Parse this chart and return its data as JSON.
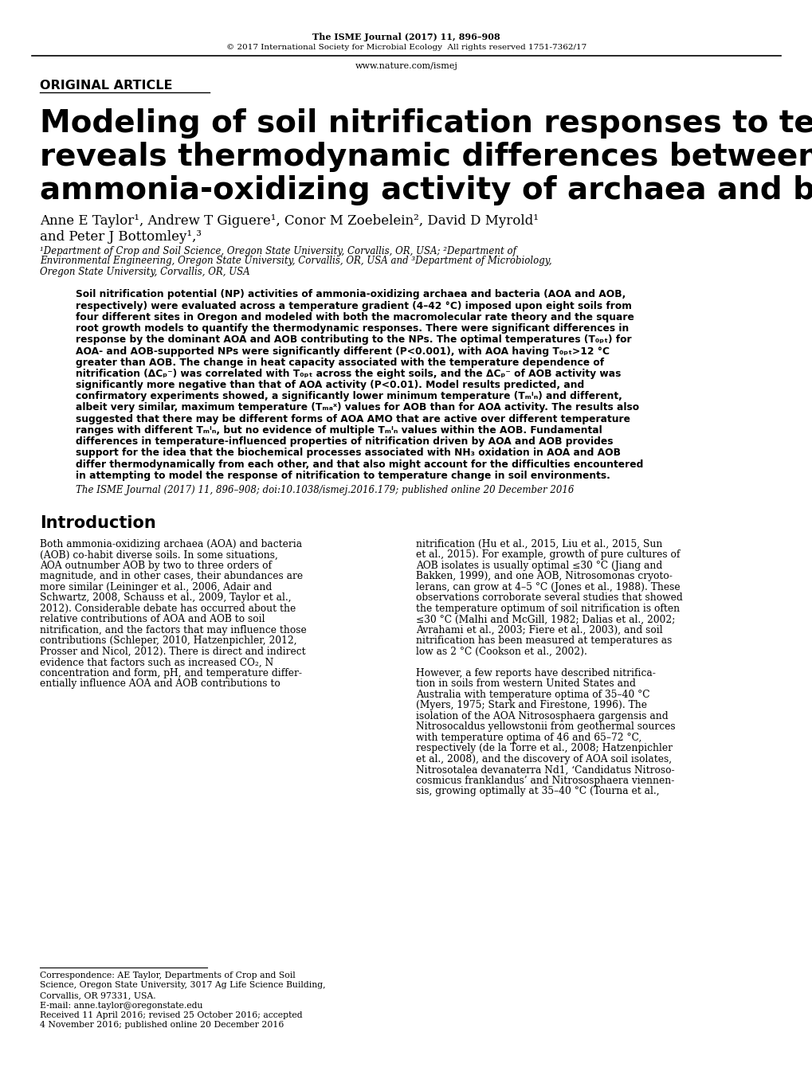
{
  "bg_color": "#ffffff",
  "header_journal_bold": "The ISME Journal (2017) 11,",
  "header_journal_normal": " 896–908",
  "header_copyright": "© 2017 International Society for Microbial Ecology  All rights reserved 1751-7362/17",
  "header_url": "www.nature.com/ismej",
  "label_original": "ORIGINAL ARTICLE",
  "title_line1": "Modeling of soil nitrification responses to temperature",
  "title_line2": "reveals thermodynamic differences between",
  "title_line3": "ammonia-oxidizing activity of archaea and bacteria",
  "authors_line1": "Anne E Taylor¹, Andrew T Giguere¹, Conor M Zoebelein², David D Myrold¹",
  "authors_line2": "and Peter J Bottomley¹,³",
  "affil1": "¹Department of Crop and Soil Science, Oregon State University, Corvallis, OR, USA; ²Department of",
  "affil2": "Environmental Engineering, Oregon State University, Corvallis, OR, USA and ³Department of Microbiology,",
  "affil3": "Oregon State University, Corvallis, OR, USA",
  "abstract_lines": [
    "Soil nitrification potential (NP) activities of ammonia-oxidizing archaea and bacteria (AOA and AOB,",
    "respectively) were evaluated across a temperature gradient (4–42 °C) imposed upon eight soils from",
    "four different sites in Oregon and modeled with both the macromolecular rate theory and the square",
    "root growth models to quantify the thermodynamic responses. There were significant differences in",
    "response by the dominant AOA and AOB contributing to the NPs. The optimal temperatures (T₀ₚₜ) for",
    "AOA- and AOB-supported NPs were significantly different (P<0.001), with AOA having T₀ₚₜ>12 °C",
    "greater than AOB. The change in heat capacity associated with the temperature dependence of",
    "nitrification (ΔCₚ⁻) was correlated with T₀ₚₜ across the eight soils, and the ΔCₚ⁻ of AOB activity was",
    "significantly more negative than that of AOA activity (P<0.01). Model results predicted, and",
    "confirmatory experiments showed, a significantly lower minimum temperature (Tₘᴵₙ) and different,",
    "albeit very similar, maximum temperature (Tₘₐˣ) values for AOB than for AOA activity. The results also",
    "suggested that there may be different forms of AOA AMO that are active over different temperature",
    "ranges with different Tₘᴵₙ, but no evidence of multiple Tₘᴵₙ values within the AOB. Fundamental",
    "differences in temperature-influenced properties of nitrification driven by AOA and AOB provides",
    "support for the idea that the biochemical processes associated with NH₃ oxidation in AOA and AOB",
    "differ thermodynamically from each other, and that also might account for the difficulties encountered",
    "in attempting to model the response of nitrification to temperature change in soil environments."
  ],
  "abstract_citation": "The ISME Journal (2017) 11, 896–908; doi:10.1038/ismej.2016.179; published online 20 December 2016",
  "intro_title": "Introduction",
  "intro_col1_lines": [
    "Both ammonia-oxidizing archaea (AOA) and bacteria",
    "(AOB) co-habit diverse soils. In some situations,",
    "AOA outnumber AOB by two to three orders of",
    "magnitude, and in other cases, their abundances are",
    "more similar (Leininger et al., 2006, Adair and",
    "Schwartz, 2008, Schauss et al., 2009, Taylor et al.,",
    "2012). Considerable debate has occurred about the",
    "relative contributions of AOA and AOB to soil",
    "nitrification, and the factors that may influence those",
    "contributions (Schleper, 2010, Hatzenpichler, 2012,",
    "Prosser and Nicol, 2012). There is direct and indirect",
    "evidence that factors such as increased CO₂, N",
    "concentration and form, pH, and temperature differ-",
    "entially influence AOA and AOB contributions to"
  ],
  "intro_col2_lines": [
    "nitrification (Hu et al., 2015, Liu et al., 2015, Sun",
    "et al., 2015). For example, growth of pure cultures of",
    "AOB isolates is usually optimal ≤30 °C (Jiang and",
    "Bakken, 1999), and one AOB, Nitrosomonas cryoto-",
    "lerans, can grow at 4–5 °C (Jones et al., 1988). These",
    "observations corroborate several studies that showed",
    "the temperature optimum of soil nitrification is often",
    "≤30 °C (Malhi and McGill, 1982; Dalias et al., 2002;",
    "Avrahami et al., 2003; Fiere et al., 2003), and soil",
    "nitrification has been measured at temperatures as",
    "low as 2 °C (Cookson et al., 2002).",
    "",
    "However, a few reports have described nitrifica-",
    "tion in soils from western United States and",
    "Australia with temperature optima of 35–40 °C",
    "(Myers, 1975; Stark and Firestone, 1996). The",
    "isolation of the AOA Nitrososphaera gargensis and",
    "Nitrosocaldus yellowstonii from geothermal sources",
    "with temperature optima of 46 and 65–72 °C,",
    "respectively (de la Torre et al., 2008; Hatzenpichler",
    "et al., 2008), and the discovery of AOA soil isolates,",
    "Nitrosotalea devanaterra Nd1, ‘Candidatus Nitroso-",
    "cosmicus franklandus’ and Nitrososphaera viennen-",
    "sis, growing optimally at 35–40 °C (Tourna et al.,"
  ],
  "footnote_lines": [
    "Correspondence: AE Taylor, Departments of Crop and Soil",
    "Science, Oregon State University, 3017 Ag Life Science Building,",
    "Corvallis, OR 97331, USA.",
    "E-mail: anne.taylor@oregonstate.edu",
    "Received 11 April 2016; revised 25 October 2016; accepted",
    "4 November 2016; published online 20 December 2016"
  ]
}
